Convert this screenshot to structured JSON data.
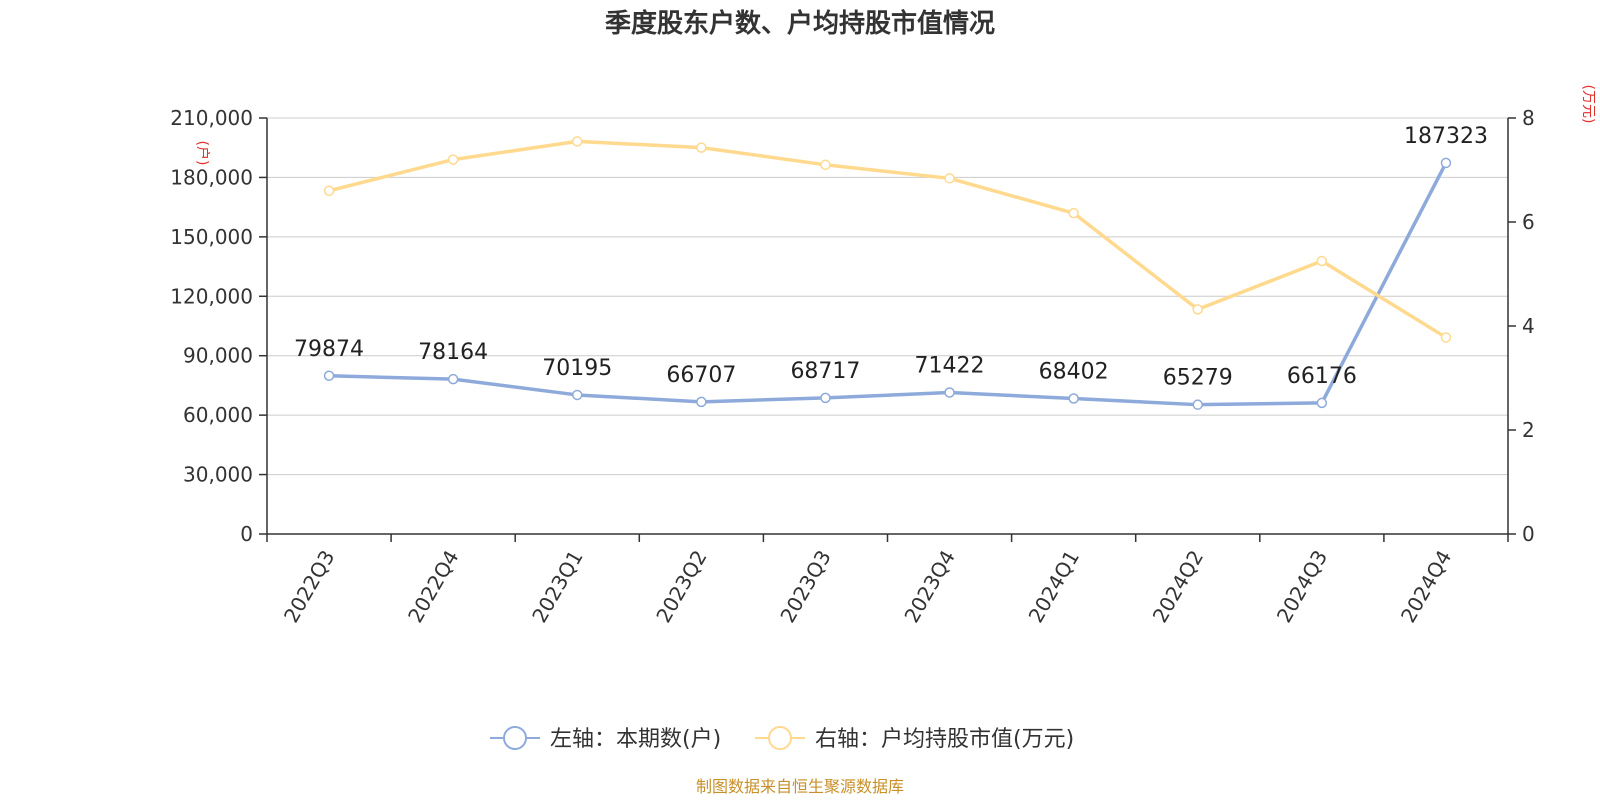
{
  "chart_data": {
    "type": "line",
    "title": "季度股东户数、户均持股市值情况",
    "categories": [
      "2022Q3",
      "2022Q4",
      "2023Q1",
      "2023Q2",
      "2023Q3",
      "2023Q4",
      "2024Q1",
      "2024Q2",
      "2024Q3",
      "2024Q4"
    ],
    "left_axis": {
      "unit": "(户)",
      "ylim": [
        0,
        210000
      ],
      "ticks": [
        "0",
        "30,000",
        "60,000",
        "90,000",
        "120,000",
        "150,000",
        "180,000",
        "210,000"
      ],
      "tick_values": [
        0,
        30000,
        60000,
        90000,
        120000,
        150000,
        180000,
        210000
      ]
    },
    "right_axis": {
      "unit": "(万元)",
      "ylim": [
        0,
        8
      ],
      "ticks": [
        "0",
        "2",
        "4",
        "6",
        "8"
      ],
      "tick_values": [
        0,
        2,
        4,
        6,
        8
      ]
    },
    "series": [
      {
        "name": "左轴：本期数(户)",
        "axis": "left",
        "color": "#8eaadb",
        "values": [
          79874,
          78164,
          70195,
          66707,
          68717,
          71422,
          68402,
          65279,
          66176,
          187323
        ],
        "labels": [
          "79874",
          "78164",
          "70195",
          "66707",
          "68717",
          "71422",
          "68402",
          "65279",
          "66176",
          "187323"
        ]
      },
      {
        "name": "右轴：户均持股市值(万元)",
        "axis": "right",
        "color": "#ffd98e",
        "values": [
          6.6,
          7.2,
          7.55,
          7.43,
          7.1,
          6.84,
          6.17,
          4.32,
          5.25,
          3.78
        ]
      }
    ],
    "grid": true,
    "legend_position": "bottom-center",
    "source": "制图数据来自恒生聚源数据库"
  }
}
